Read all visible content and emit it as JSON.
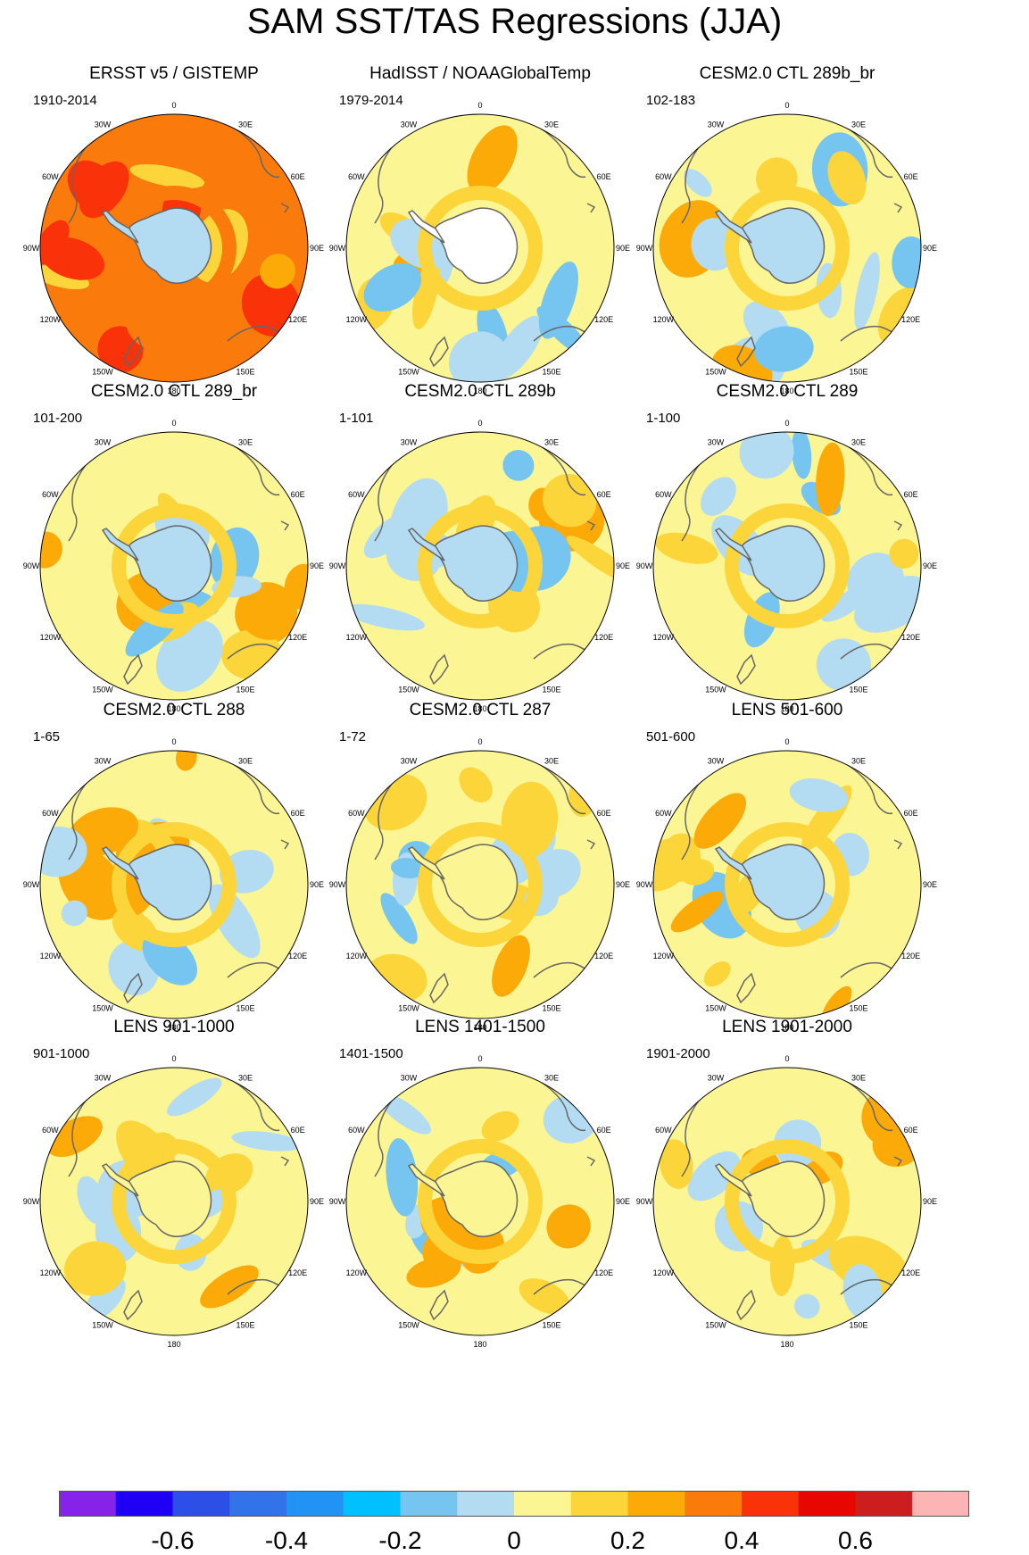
{
  "title": "SAM SST/TAS Regressions (JJA)",
  "panels": [
    {
      "title": "ERSST v5 / GISTEMP",
      "period": "1910-2014",
      "base": 0.25,
      "ant": -0.15,
      "hole": false
    },
    {
      "title": "HadISST / NOAAGlobalTemp",
      "period": "1979-2014",
      "base": 0.0,
      "ant": null,
      "hole": true
    },
    {
      "title": "CESM2.0 CTL 289b_br",
      "period": "102-183",
      "base": 0.02,
      "ant": -0.15,
      "hole": false
    },
    {
      "title": "CESM2.0 CTL 289_br",
      "period": "101-200",
      "base": 0.02,
      "ant": -0.1,
      "hole": false
    },
    {
      "title": "CESM2.0 CTL 289b",
      "period": "1-101",
      "base": 0.0,
      "ant": -0.1,
      "hole": false
    },
    {
      "title": "CESM2.0 CTL 289",
      "period": "1-100",
      "base": 0.02,
      "ant": -0.15,
      "hole": false
    },
    {
      "title": "CESM2.0 CTL 288",
      "period": "1-65",
      "base": 0.0,
      "ant": -0.1,
      "hole": false
    },
    {
      "title": "CESM2.0 CTL 287",
      "period": "1-72",
      "base": 0.02,
      "ant": -0.05,
      "hole": false
    },
    {
      "title": "LENS 501-600",
      "period": "501-600",
      "base": 0.02,
      "ant": -0.1,
      "hole": false
    },
    {
      "title": "LENS 901-1000",
      "period": "901-1000",
      "base": 0.02,
      "ant": -0.05,
      "hole": false
    },
    {
      "title": "LENS 1401-1500",
      "period": "1401-1500",
      "base": 0.0,
      "ant": -0.05,
      "hole": false
    },
    {
      "title": "LENS 1901-2000",
      "period": "1901-2000",
      "base": 0.02,
      "ant": -0.05,
      "hole": false
    }
  ],
  "lon_labels": [
    "0",
    "30E",
    "60E",
    "90E",
    "120E",
    "150E",
    "180",
    "150W",
    "120W",
    "90W",
    "60W",
    "30W"
  ],
  "colorbar": {
    "colors": [
      "#8722e8",
      "#1f00f5",
      "#2c4fe6",
      "#3273ea",
      "#2193f5",
      "#00c0ff",
      "#75c5f0",
      "#b3dcf2",
      "#fcf593",
      "#fcd53a",
      "#fcaa08",
      "#fa7a0c",
      "#fa320a",
      "#e80600",
      "#cc1e1e",
      "#fcb4b4"
    ],
    "labels": [
      "-0.6",
      "-0.4",
      "-0.2",
      "0",
      "0.2",
      "0.4",
      "0.6"
    ],
    "label_values": [
      -0.6,
      -0.4,
      -0.2,
      0,
      0.2,
      0.4,
      0.6
    ],
    "min": -0.8,
    "max": 0.8
  },
  "chart_data": {
    "type": "map",
    "title": "SAM SST/TAS Regressions (JJA)",
    "projection": "south polar stereographic",
    "colorbar_min": -0.8,
    "colorbar_max": 0.8,
    "colorbar_interval": 0.1,
    "panels": [
      "ERSST v5 / GISTEMP",
      "HadISST / NOAAGlobalTemp",
      "CESM2.0 CTL 289b_br",
      "CESM2.0 CTL 289_br",
      "CESM2.0 CTL 289b",
      "CESM2.0 CTL 289",
      "CESM2.0 CTL 288",
      "CESM2.0 CTL 287",
      "LENS 501-600",
      "LENS 901-1000",
      "LENS 1401-1500",
      "LENS 1901-2000"
    ]
  }
}
